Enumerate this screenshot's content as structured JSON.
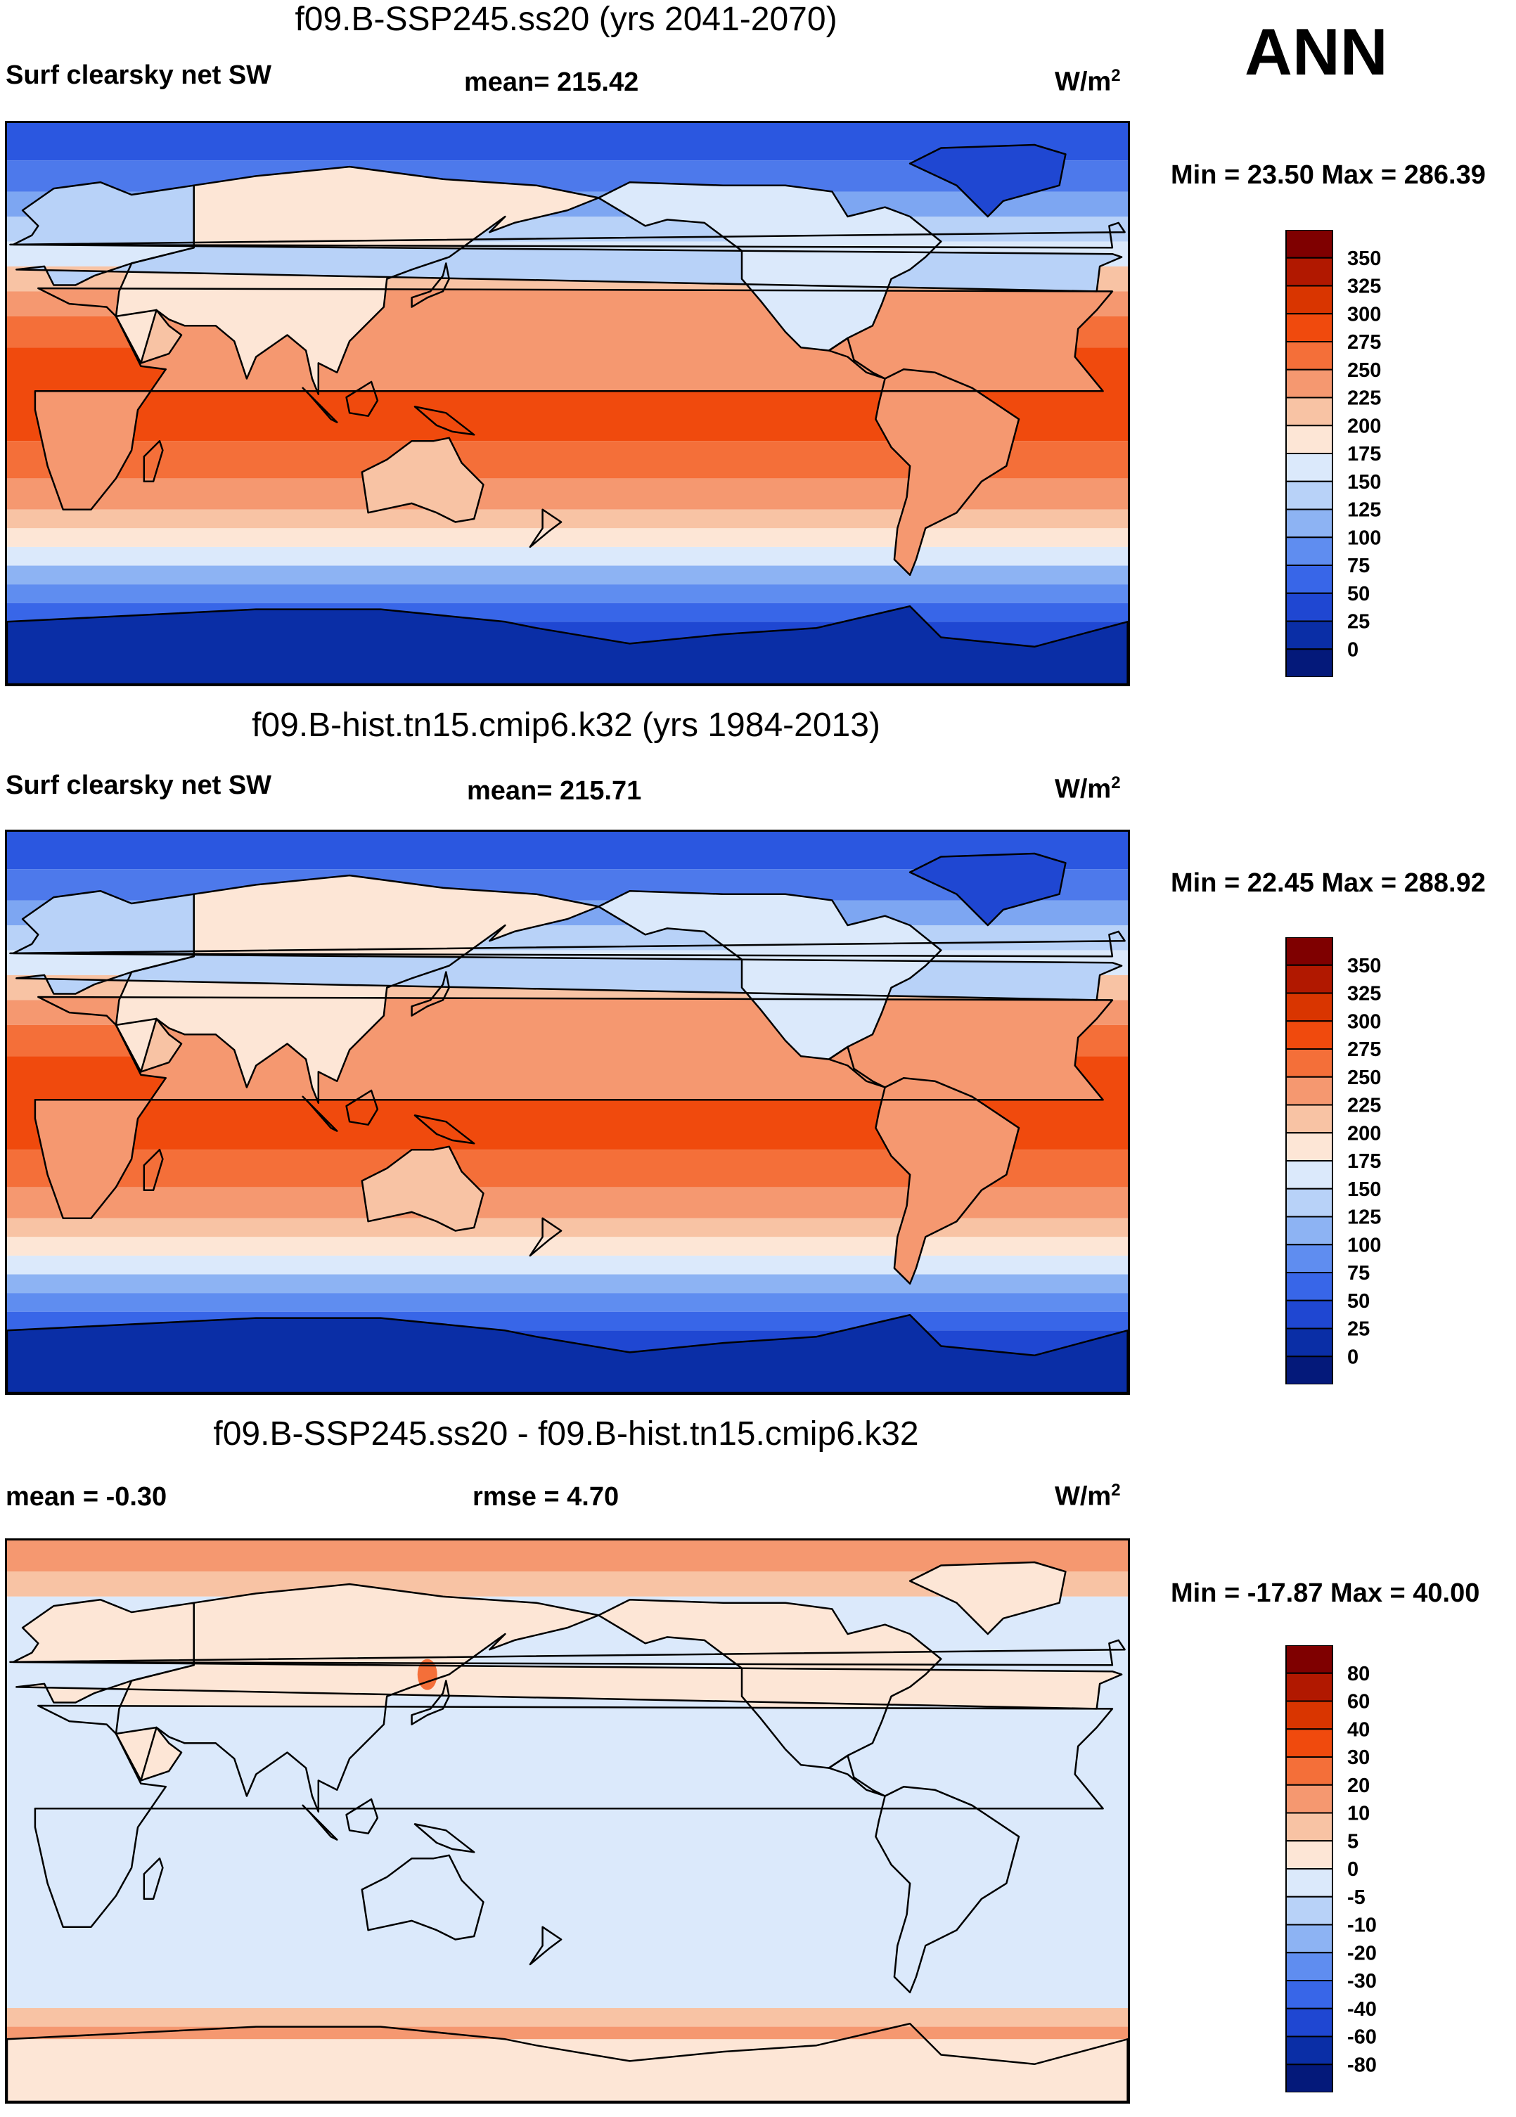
{
  "season": "ANN",
  "panels": [
    {
      "id": "p1",
      "title": "f09.B-SSP245.ss20 (yrs 2041-2070)",
      "left_label": "Surf clearsky net SW",
      "center_label": "mean= 215.42",
      "units": "W/m",
      "units_sup": "2",
      "minmax": "Min =  23.50 Max = 286.39",
      "colorbar": {
        "labels": [
          "350",
          "325",
          "300",
          "275",
          "250",
          "225",
          "200",
          "175",
          "150",
          "125",
          "100",
          "75",
          "50",
          "25",
          "0"
        ],
        "colors": [
          "#7f0000",
          "#b11800",
          "#d93500",
          "#f04a0d",
          "#f46f39",
          "#f59870",
          "#f8c3a4",
          "#fde6d6",
          "#dbe9fb",
          "#b8d2f8",
          "#8db3f3",
          "#5f8df0",
          "#3866e8",
          "#1f47d2",
          "#0a2ea6",
          "#04197a"
        ]
      },
      "map_scale": "absolute"
    },
    {
      "id": "p2",
      "title": "f09.B-hist.tn15.cmip6.k32 (yrs 1984-2013)",
      "left_label": "Surf clearsky net SW",
      "center_label": "mean= 215.71",
      "units": "W/m",
      "units_sup": "2",
      "minmax": "Min =  22.45 Max = 288.92",
      "colorbar": {
        "labels": [
          "350",
          "325",
          "300",
          "275",
          "250",
          "225",
          "200",
          "175",
          "150",
          "125",
          "100",
          "75",
          "50",
          "25",
          "0"
        ],
        "colors": [
          "#7f0000",
          "#b11800",
          "#d93500",
          "#f04a0d",
          "#f46f39",
          "#f59870",
          "#f8c3a4",
          "#fde6d6",
          "#dbe9fb",
          "#b8d2f8",
          "#8db3f3",
          "#5f8df0",
          "#3866e8",
          "#1f47d2",
          "#0a2ea6",
          "#04197a"
        ]
      },
      "map_scale": "absolute"
    },
    {
      "id": "p3",
      "title": "f09.B-SSP245.ss20 - f09.B-hist.tn15.cmip6.k32",
      "left_label": "mean =  -0.30",
      "center_label": "rmse =   4.70",
      "units": "W/m",
      "units_sup": "2",
      "minmax": "Min = -17.87 Max =  40.00",
      "colorbar": {
        "labels": [
          "80",
          "60",
          "40",
          "30",
          "20",
          "10",
          "5",
          "0",
          "-5",
          "-10",
          "-20",
          "-30",
          "-40",
          "-60",
          "-80"
        ],
        "colors": [
          "#7f0000",
          "#b11800",
          "#d93500",
          "#f04a0d",
          "#f46f39",
          "#f59870",
          "#f8c3a4",
          "#fde6d6",
          "#dbe9fb",
          "#b8d2f8",
          "#8db3f3",
          "#5f8df0",
          "#3866e8",
          "#1f47d2",
          "#0a2ea6",
          "#04197a"
        ]
      },
      "map_scale": "difference"
    }
  ]
}
